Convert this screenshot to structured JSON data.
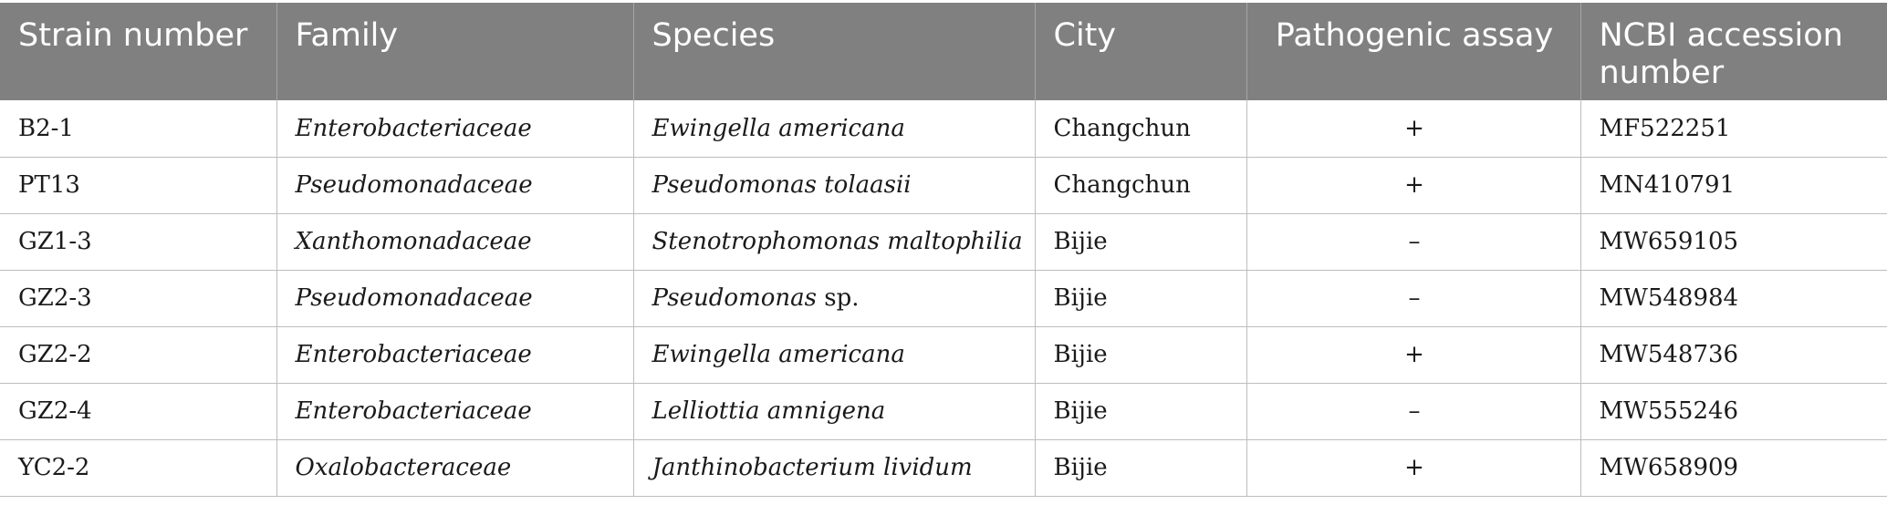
{
  "table": {
    "headers": [
      "Strain number",
      "Family",
      "Species",
      "City",
      "Pathogenic assay",
      "NCBI accession number"
    ],
    "rows": [
      {
        "strain": "B2-1",
        "family": "Enterobacteriaceae",
        "species": "Ewingella americana",
        "species_suffix": "",
        "city": "Changchun",
        "pathogenic": "+",
        "accession": "MF522251"
      },
      {
        "strain": "PT13",
        "family": "Pseudomonadaceae",
        "species": "Pseudomonas tolaasii",
        "species_suffix": "",
        "city": "Changchun",
        "pathogenic": "+",
        "accession": "MN410791"
      },
      {
        "strain": "GZ1-3",
        "family": "Xanthomonadaceae",
        "species": "Stenotrophomonas maltophilia",
        "species_suffix": "",
        "city": "Bijie",
        "pathogenic": "–",
        "accession": "MW659105"
      },
      {
        "strain": "GZ2-3",
        "family": "Pseudomonadaceae",
        "species": "Pseudomonas",
        "species_suffix": " sp.",
        "city": "Bijie",
        "pathogenic": "–",
        "accession": "MW548984"
      },
      {
        "strain": "GZ2-2",
        "family": "Enterobacteriaceae",
        "species": "Ewingella americana",
        "species_suffix": "",
        "city": "Bijie",
        "pathogenic": "+",
        "accession": "MW548736"
      },
      {
        "strain": "GZ2-4",
        "family": "Enterobacteriaceae",
        "species": "Lelliottia amnigena",
        "species_suffix": "",
        "city": "Bijie",
        "pathogenic": "–",
        "accession": "MW555246"
      },
      {
        "strain": "YC2-2",
        "family": "Oxalobacteraceae",
        "species": "Janthinobacterium lividum",
        "species_suffix": "",
        "city": "Bijie",
        "pathogenic": "+",
        "accession": "MW658909"
      }
    ]
  },
  "colors": {
    "header_bg": "#808080",
    "header_text": "#ffffff",
    "grid_line": "#bdbdbd"
  }
}
